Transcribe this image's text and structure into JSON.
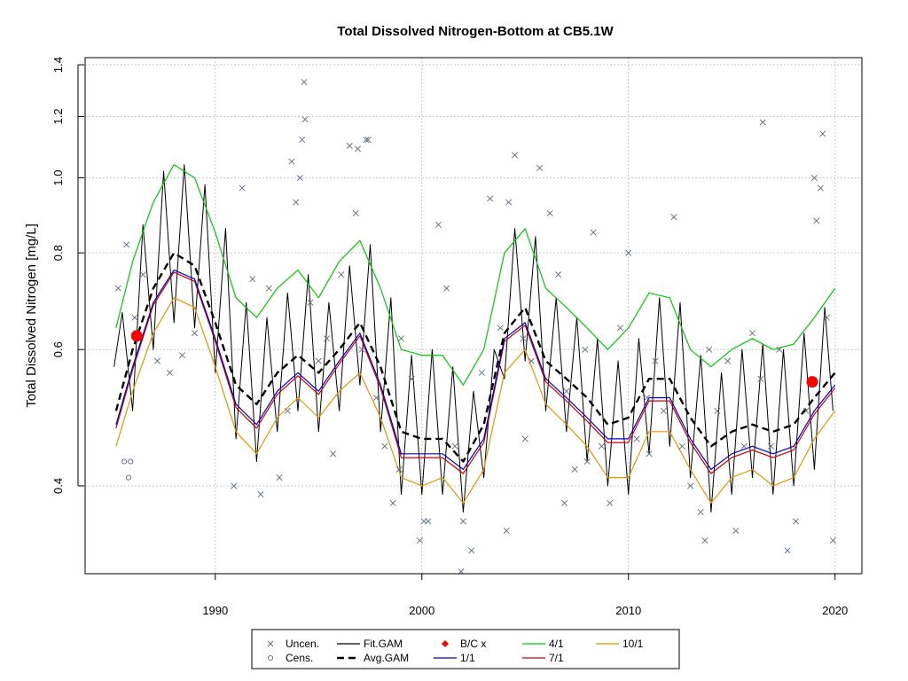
{
  "chart_data": {
    "type": "scatter",
    "title": "Total Dissolved Nitrogen-Bottom at CB5.1W",
    "ylabel": "Total Dissolved Nitrogen [mg/L]",
    "xlabel": "",
    "y_scale": "log",
    "grid": true,
    "xlim": [
      1983.7,
      2021.3
    ],
    "ylim": [
      0.308,
      1.43
    ],
    "x_ticks": [
      1990,
      2000,
      2010,
      2020
    ],
    "x_tick_labels": [
      "1990",
      "2000",
      "2010",
      "2020"
    ],
    "y_ticks": [
      0.4,
      0.6,
      0.8,
      1.0,
      1.2,
      1.4
    ],
    "y_tick_labels": [
      "0.4",
      "0.6",
      "0.8",
      "1.0",
      "1.2",
      "1.4"
    ],
    "legend_position": "bottom",
    "legend": [
      {
        "label": "Uncen.",
        "kind": "x-marker",
        "color": "#5a6a80"
      },
      {
        "label": "Cens.",
        "kind": "circle-marker",
        "color": "#5a6a80"
      },
      {
        "label": "Fit.GAM",
        "kind": "line",
        "color": "#000000"
      },
      {
        "label": "Avg.GAM",
        "kind": "dashed-line",
        "color": "#000000"
      },
      {
        "label": "B/C x",
        "kind": "diamond-marker",
        "color": "#ff0000"
      },
      {
        "label": "1/1",
        "kind": "line",
        "color": "#0000cc"
      },
      {
        "label": "4/1",
        "kind": "line",
        "color": "#00cc00"
      },
      {
        "label": "7/1",
        "kind": "line",
        "color": "#cc0000"
      },
      {
        "label": "10/1",
        "kind": "line",
        "color": "#e69500"
      }
    ],
    "series": [
      {
        "name": "4/1",
        "color": "#00cc00",
        "x": [
          1985.2,
          1986,
          1987,
          1988,
          1989,
          1990,
          1991,
          1992,
          1993,
          1994,
          1995,
          1996,
          1997,
          1998,
          1999,
          2000,
          2001,
          2002,
          2003,
          2004,
          2005,
          2006,
          2007,
          2008,
          2009,
          2010,
          2011,
          2012,
          2013,
          2014,
          2015,
          2016,
          2017,
          2018,
          2019,
          2020
        ],
        "y": [
          0.64,
          0.78,
          0.93,
          1.04,
          1.0,
          0.85,
          0.7,
          0.66,
          0.72,
          0.76,
          0.7,
          0.78,
          0.83,
          0.72,
          0.6,
          0.59,
          0.59,
          0.54,
          0.6,
          0.8,
          0.86,
          0.72,
          0.68,
          0.64,
          0.6,
          0.64,
          0.71,
          0.7,
          0.6,
          0.57,
          0.6,
          0.62,
          0.6,
          0.61,
          0.66,
          0.72
        ]
      },
      {
        "name": "Avg.GAM",
        "color": "#000000",
        "x": [
          1985.2,
          1986,
          1987,
          1988,
          1989,
          1990,
          1991,
          1992,
          1993,
          1994,
          1995,
          1996,
          1997,
          1998,
          1999,
          2000,
          2001,
          2002,
          2003,
          2004,
          2005,
          2006,
          2007,
          2008,
          2009,
          2010,
          2011,
          2012,
          2013,
          2014,
          2015,
          2016,
          2017,
          2018,
          2019,
          2020
        ],
        "y": [
          0.5,
          0.6,
          0.72,
          0.8,
          0.77,
          0.65,
          0.54,
          0.51,
          0.56,
          0.59,
          0.56,
          0.6,
          0.65,
          0.57,
          0.47,
          0.46,
          0.46,
          0.43,
          0.48,
          0.63,
          0.68,
          0.58,
          0.55,
          0.52,
          0.48,
          0.49,
          0.55,
          0.55,
          0.49,
          0.45,
          0.47,
          0.48,
          0.47,
          0.48,
          0.52,
          0.56
        ]
      },
      {
        "name": "1/1",
        "color": "#0000cc",
        "x": [
          1985.2,
          1986,
          1987,
          1988,
          1989,
          1990,
          1991,
          1992,
          1993,
          1994,
          1995,
          1996,
          1997,
          1998,
          1999,
          2000,
          2001,
          2002,
          2003,
          2004,
          2005,
          2006,
          2007,
          2008,
          2009,
          2010,
          2011,
          2012,
          2013,
          2014,
          2015,
          2016,
          2017,
          2018,
          2019,
          2020
        ],
        "y": [
          0.48,
          0.57,
          0.69,
          0.76,
          0.74,
          0.62,
          0.51,
          0.48,
          0.53,
          0.56,
          0.53,
          0.58,
          0.63,
          0.54,
          0.44,
          0.44,
          0.44,
          0.42,
          0.46,
          0.62,
          0.65,
          0.55,
          0.52,
          0.49,
          0.46,
          0.46,
          0.52,
          0.52,
          0.46,
          0.42,
          0.44,
          0.45,
          0.44,
          0.45,
          0.5,
          0.54
        ]
      },
      {
        "name": "7/1",
        "color": "#cc0000",
        "x": [
          1985.2,
          1986,
          1987,
          1988,
          1989,
          1990,
          1991,
          1992,
          1993,
          1994,
          1995,
          1996,
          1997,
          1998,
          1999,
          2000,
          2001,
          2002,
          2003,
          2004,
          2005,
          2006,
          2007,
          2008,
          2009,
          2010,
          2011,
          2012,
          2013,
          2014,
          2015,
          2016,
          2017,
          2018,
          2019,
          2020
        ],
        "y": [
          0.475,
          0.565,
          0.685,
          0.755,
          0.735,
          0.615,
          0.505,
          0.475,
          0.525,
          0.555,
          0.525,
          0.575,
          0.625,
          0.535,
          0.435,
          0.435,
          0.435,
          0.415,
          0.455,
          0.615,
          0.645,
          0.545,
          0.515,
          0.485,
          0.455,
          0.455,
          0.515,
          0.515,
          0.455,
          0.415,
          0.435,
          0.445,
          0.435,
          0.445,
          0.495,
          0.535
        ]
      },
      {
        "name": "10/1",
        "color": "#e69500",
        "x": [
          1985.2,
          1986,
          1987,
          1988,
          1989,
          1990,
          1991,
          1992,
          1993,
          1994,
          1995,
          1996,
          1997,
          1998,
          1999,
          2000,
          2001,
          2002,
          2003,
          2004,
          2005,
          2006,
          2007,
          2008,
          2009,
          2010,
          2011,
          2012,
          2013,
          2014,
          2015,
          2016,
          2017,
          2018,
          2019,
          2020
        ],
        "y": [
          0.45,
          0.53,
          0.63,
          0.7,
          0.68,
          0.57,
          0.47,
          0.44,
          0.49,
          0.52,
          0.49,
          0.53,
          0.56,
          0.49,
          0.41,
          0.4,
          0.41,
          0.38,
          0.42,
          0.56,
          0.6,
          0.51,
          0.48,
          0.45,
          0.41,
          0.41,
          0.47,
          0.47,
          0.42,
          0.38,
          0.41,
          0.42,
          0.4,
          0.41,
          0.46,
          0.5
        ]
      },
      {
        "name": "Fit.GAM",
        "color": "#000000",
        "x": [
          1985.1,
          1985.5,
          1986.0,
          1986.5,
          1987.0,
          1987.5,
          1988.0,
          1988.5,
          1989.0,
          1989.5,
          1990.0,
          1990.5,
          1991.0,
          1991.5,
          1992.0,
          1992.5,
          1993.0,
          1993.5,
          1994.0,
          1994.5,
          1995.0,
          1995.5,
          1996.0,
          1996.5,
          1997.0,
          1997.5,
          1998.0,
          1998.5,
          1999.0,
          1999.5,
          2000.0,
          2000.5,
          2001.0,
          2001.5,
          2002.0,
          2002.5,
          2003.0,
          2003.5,
          2004.0,
          2004.5,
          2005.0,
          2005.5,
          2006.0,
          2006.5,
          2007.0,
          2007.5,
          2008.0,
          2008.5,
          2009.0,
          2009.5,
          2010.0,
          2010.5,
          2011.0,
          2011.5,
          2012.0,
          2012.5,
          2013.0,
          2013.5,
          2014.0,
          2014.5,
          2015.0,
          2015.5,
          2016.0,
          2016.5,
          2017.0,
          2017.5,
          2018.0,
          2018.5,
          2019.0,
          2019.5,
          2019.9
        ],
        "y": [
          0.57,
          0.67,
          0.5,
          0.87,
          0.6,
          1.02,
          0.65,
          1.04,
          0.64,
          0.98,
          0.56,
          0.86,
          0.46,
          0.69,
          0.43,
          0.66,
          0.47,
          0.71,
          0.5,
          0.75,
          0.47,
          0.69,
          0.5,
          0.77,
          0.54,
          0.82,
          0.47,
          0.7,
          0.39,
          0.59,
          0.39,
          0.6,
          0.39,
          0.57,
          0.37,
          0.53,
          0.41,
          0.6,
          0.55,
          0.86,
          0.58,
          0.84,
          0.5,
          0.7,
          0.47,
          0.66,
          0.43,
          0.62,
          0.4,
          0.58,
          0.39,
          0.62,
          0.44,
          0.7,
          0.45,
          0.69,
          0.41,
          0.59,
          0.37,
          0.56,
          0.39,
          0.6,
          0.41,
          0.61,
          0.39,
          0.6,
          0.4,
          0.63,
          0.42,
          0.68,
          0.5
        ]
      },
      {
        "name": "Uncen.",
        "color": "#5a6a80",
        "x": [
          1985.3,
          1985.7,
          1986.1,
          1986.5,
          1987.2,
          1987.8,
          1988.4,
          1989.0,
          1990.9,
          1991.3,
          1991.8,
          1992.2,
          1992.6,
          1993.1,
          1993.5,
          1993.9,
          1994.1,
          1994.3,
          1994.6,
          1995.0,
          1995.4,
          1995.7,
          1996.1,
          1996.5,
          1996.8,
          1997.1,
          1997.4,
          1997.8,
          1998.2,
          1998.6,
          1999.0,
          1999.5,
          1999.9,
          2000.3,
          2000.8,
          2001.2,
          2001.6,
          2002.0,
          2002.4,
          2002.9,
          2003.3,
          2003.8,
          2004.2,
          2004.5,
          2004.9,
          2005.3,
          2005.7,
          2006.2,
          2006.6,
          2007.0,
          2007.4,
          2007.9,
          2008.3,
          2008.7,
          2009.1,
          2009.6,
          2010.0,
          2010.4,
          2010.9,
          2011.3,
          2011.7,
          2012.2,
          2012.6,
          2013.0,
          2013.5,
          2013.9,
          2014.3,
          2014.8,
          2015.2,
          2015.6,
          2016.0,
          2016.4,
          2016.9,
          2017.3,
          2017.7,
          2018.1,
          2018.6,
          2019.0,
          2019.3,
          2019.6,
          2019.9,
          1994.2,
          1994.35,
          1996.9,
          1997.3,
          1993.7,
          1998.9,
          2000.1,
          2001.9,
          2004.1,
          2005.0,
          2006.9,
          2008.0,
          2011.0,
          2013.7,
          2016.5,
          2019.1,
          2019.4
        ],
        "y": [
          0.72,
          0.82,
          0.66,
          0.75,
          0.58,
          0.56,
          0.59,
          0.63,
          0.4,
          0.97,
          0.74,
          0.39,
          0.72,
          0.41,
          0.5,
          0.93,
          1.0,
          1.33,
          0.69,
          0.58,
          0.62,
          0.44,
          0.75,
          1.1,
          0.9,
          0.6,
          1.12,
          0.52,
          0.45,
          0.38,
          0.62,
          0.55,
          0.34,
          0.36,
          0.87,
          0.72,
          0.45,
          0.36,
          0.33,
          0.56,
          0.94,
          0.64,
          0.93,
          1.07,
          0.62,
          0.58,
          1.03,
          0.9,
          0.75,
          0.53,
          0.42,
          0.6,
          0.85,
          0.45,
          0.38,
          0.64,
          0.8,
          0.46,
          0.52,
          0.58,
          0.5,
          0.89,
          0.45,
          0.4,
          0.37,
          0.6,
          0.5,
          0.58,
          0.35,
          0.45,
          0.63,
          0.55,
          0.45,
          0.6,
          0.33,
          0.36,
          0.5,
          1.0,
          0.97,
          0.66,
          0.34,
          1.12,
          1.19,
          1.09,
          1.12,
          1.05,
          0.42,
          0.36,
          0.31,
          0.35,
          0.46,
          0.38,
          0.43,
          0.44,
          0.34,
          1.18,
          0.88,
          1.14
        ]
      },
      {
        "name": "Cens.",
        "color": "#5a6a80",
        "x": [
          1985.6,
          1985.8,
          1985.9
        ],
        "y": [
          0.43,
          0.41,
          0.43
        ]
      },
      {
        "name": "B/C x",
        "color": "#ff0000",
        "x": [
          1986.2,
          2018.9
        ],
        "y": [
          0.625,
          0.545
        ]
      }
    ]
  }
}
